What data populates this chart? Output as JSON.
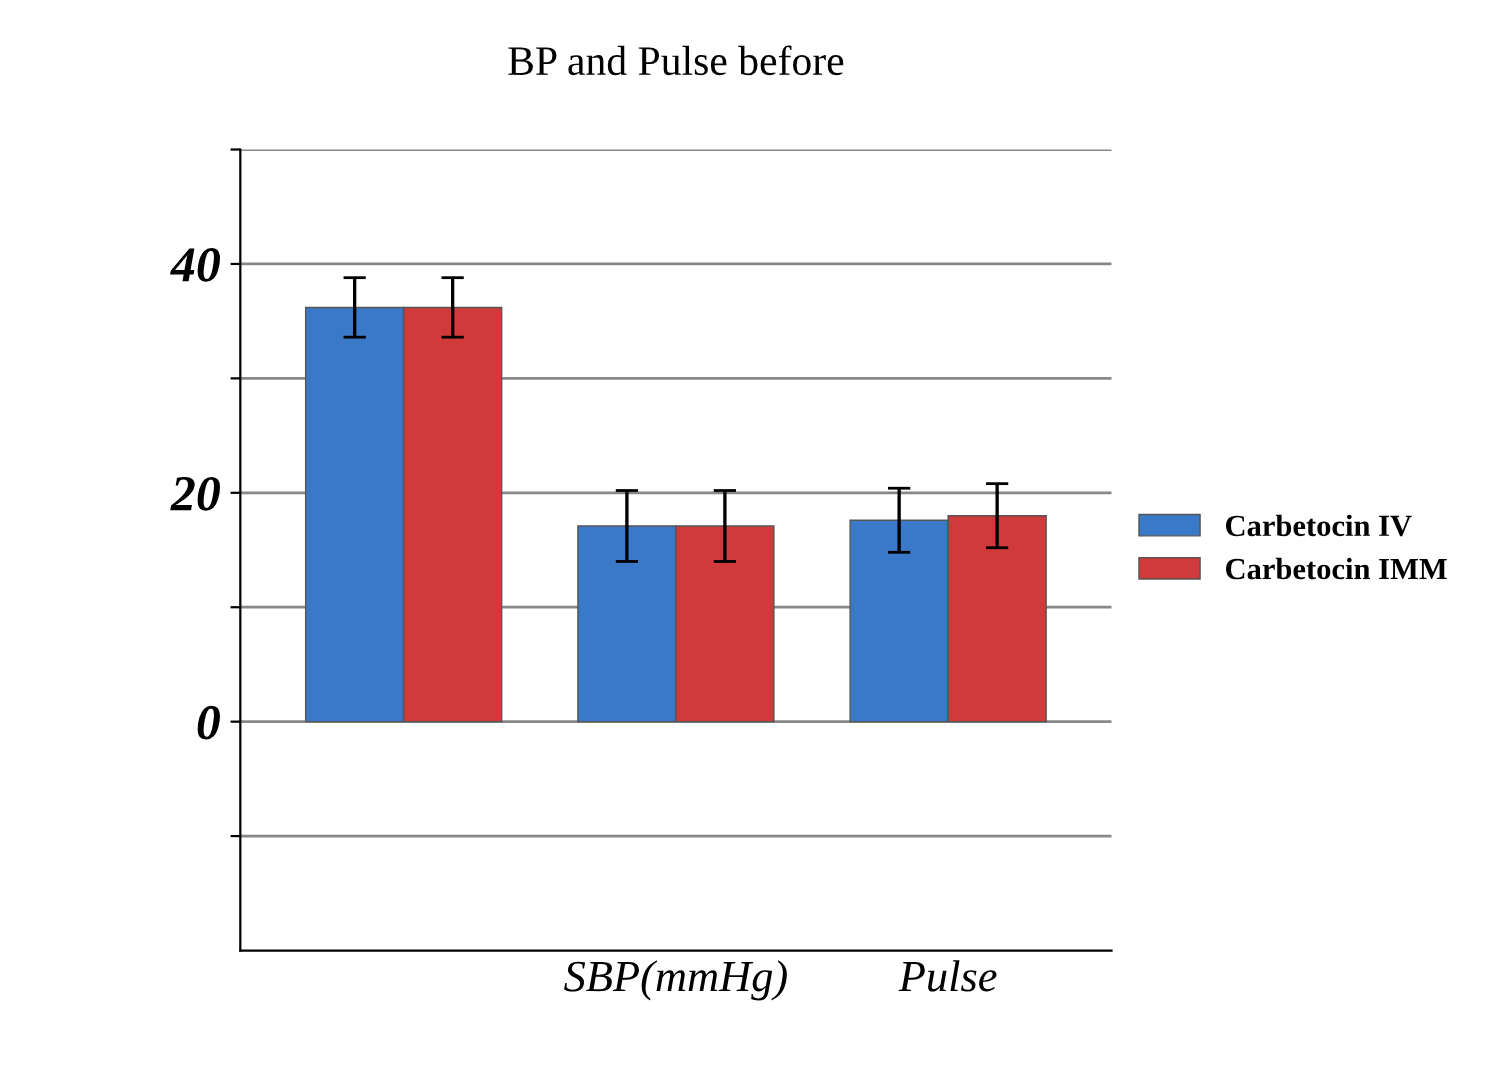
{
  "chart_data": {
    "type": "bar",
    "title": "BP and Pulse before",
    "categories": [
      null,
      "SBP(mmHg)",
      "Pulse"
    ],
    "series": [
      {
        "name": "Carbetocin IV",
        "color": "#3a78c8",
        "values": [
          36.2,
          17.1,
          17.6
        ],
        "errors": [
          2.6,
          3.1,
          2.8
        ]
      },
      {
        "name": "Carbetocin IMM",
        "color": "#d03a3a",
        "values": [
          36.2,
          17.1,
          18.0
        ],
        "errors": [
          2.6,
          3.1,
          2.8
        ]
      }
    ],
    "ylim": [
      -20,
      50
    ],
    "yticks": [
      {
        "value": -10,
        "label": null
      },
      {
        "value": 0,
        "label": "0"
      },
      {
        "value": 10,
        "label": null
      },
      {
        "value": 20,
        "label": "20"
      },
      {
        "value": 30,
        "label": null
      },
      {
        "value": 40,
        "label": "40"
      },
      {
        "value": 50,
        "label": null
      }
    ],
    "grid": "y",
    "legend": "right"
  }
}
